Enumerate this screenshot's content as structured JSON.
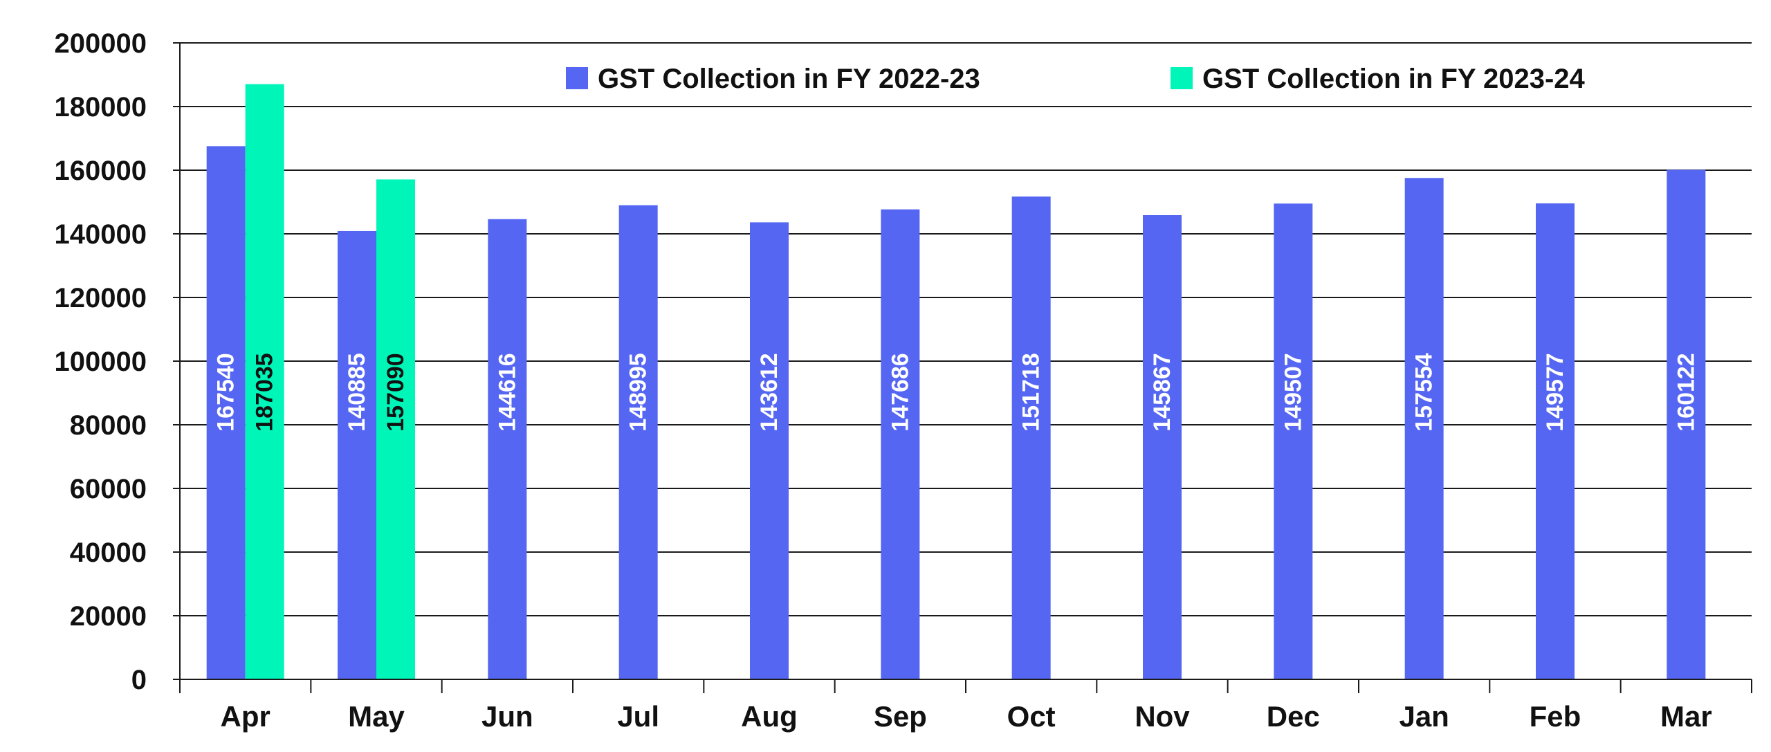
{
  "chart_data": {
    "type": "bar",
    "categories": [
      "Apr",
      "May",
      "Jun",
      "Jul",
      "Aug",
      "Sep",
      "Oct",
      "Nov",
      "Dec",
      "Jan",
      "Feb",
      "Mar"
    ],
    "series": [
      {
        "name": "GST Collection in FY 2022-23",
        "color": "#5567F2",
        "label_color": "#ffffff",
        "values": [
          167540,
          140885,
          144616,
          148995,
          143612,
          147686,
          151718,
          145867,
          149507,
          157554,
          149577,
          160122
        ]
      },
      {
        "name": "GST Collection in FY 2023-24",
        "color": "#00F5B8",
        "label_color": "#111111",
        "values": [
          187035,
          157090,
          null,
          null,
          null,
          null,
          null,
          null,
          null,
          null,
          null,
          null
        ]
      }
    ],
    "title": "",
    "xlabel": "",
    "ylabel": "",
    "ylim": [
      0,
      200000
    ],
    "yticks": [
      "0",
      "20000",
      "40000",
      "60000",
      "80000",
      "100000",
      "120000",
      "140000",
      "160000",
      "180000",
      "200000"
    ],
    "grid": true,
    "legend_position": "top"
  }
}
